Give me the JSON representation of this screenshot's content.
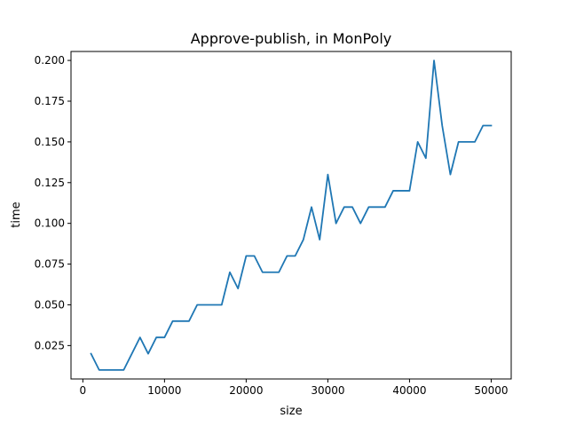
{
  "chart_data": {
    "type": "line",
    "title": "Approve-publish, in MonPoly",
    "xlabel": "size",
    "ylabel": "time",
    "xlim": [
      -1450,
      52450
    ],
    "ylim": [
      0.0045,
      0.2055
    ],
    "xticks": [
      0,
      10000,
      20000,
      30000,
      40000,
      50000
    ],
    "xtick_labels": [
      "0",
      "10000",
      "20000",
      "30000",
      "40000",
      "50000"
    ],
    "yticks": [
      0.025,
      0.05,
      0.075,
      0.1,
      0.125,
      0.15,
      0.175,
      0.2
    ],
    "ytick_labels": [
      "0.025",
      "0.050",
      "0.075",
      "0.100",
      "0.125",
      "0.150",
      "0.175",
      "0.200"
    ],
    "grid": false,
    "line_color": "#1f77b4",
    "series": [
      {
        "x": [
          1000,
          2000,
          3000,
          4000,
          5000,
          6000,
          7000,
          8000,
          9000,
          10000,
          11000,
          12000,
          13000,
          14000,
          15000,
          16000,
          17000,
          18000,
          19000,
          20000,
          21000,
          22000,
          23000,
          24000,
          25000,
          26000,
          27000,
          28000,
          29000,
          30000,
          31000,
          32000,
          33000,
          34000,
          35000,
          36000,
          37000,
          38000,
          39000,
          40000,
          41000,
          42000,
          43000,
          44000,
          45000,
          46000,
          47000,
          48000,
          49000,
          50000
        ],
        "y": [
          0.02,
          0.01,
          0.01,
          0.01,
          0.01,
          0.02,
          0.03,
          0.02,
          0.03,
          0.03,
          0.04,
          0.04,
          0.04,
          0.05,
          0.05,
          0.05,
          0.05,
          0.07,
          0.06,
          0.08,
          0.08,
          0.07,
          0.07,
          0.07,
          0.08,
          0.08,
          0.09,
          0.11,
          0.09,
          0.13,
          0.1,
          0.11,
          0.11,
          0.1,
          0.11,
          0.11,
          0.11,
          0.12,
          0.12,
          0.12,
          0.15,
          0.14,
          0.2,
          0.16,
          0.13,
          0.15,
          0.15,
          0.15,
          0.16,
          0.16
        ]
      }
    ]
  }
}
